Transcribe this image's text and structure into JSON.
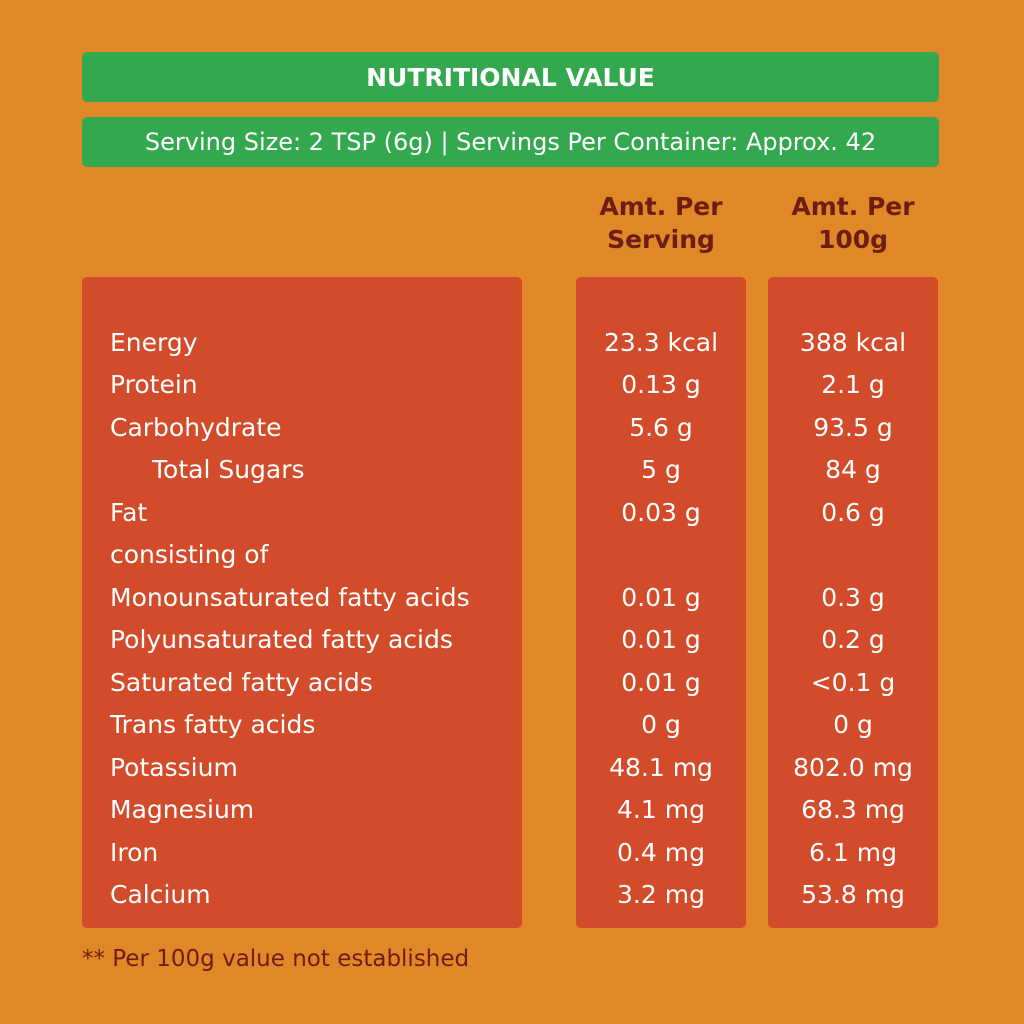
{
  "header": {
    "title": "NUTRITIONAL VALUE",
    "serving_info": "Serving Size:  2 TSP (6g) | Servings Per Container: Approx. 42"
  },
  "columns": {
    "per_serving": [
      "Amt. Per",
      "Serving"
    ],
    "per_100g": [
      "Amt. Per",
      "100g"
    ]
  },
  "rows": [
    {
      "name": "Energy",
      "serving": "23.3 kcal",
      "per100": "388 kcal"
    },
    {
      "name": "Protein",
      "serving": "0.13 g",
      "per100": "2.1 g"
    },
    {
      "name": "Carbohydrate",
      "serving": "5.6 g",
      "per100": "93.5 g"
    },
    {
      "name": "Total Sugars",
      "serving": "5 g",
      "per100": "84 g"
    },
    {
      "name": "Fat",
      "serving": "0.03 g",
      "per100": "0.6 g"
    },
    {
      "name": "consisting of",
      "serving": "",
      "per100": ""
    },
    {
      "name": "Monounsaturated fatty acids",
      "serving": "0.01 g",
      "per100": "0.3 g"
    },
    {
      "name": "Polyunsaturated fatty acids",
      "serving": "0.01 g",
      "per100": "0.2 g"
    },
    {
      "name": "Saturated fatty acids",
      "serving": "0.01 g",
      "per100": "<0.1 g"
    },
    {
      "name": "Trans fatty acids",
      "serving": "0 g",
      "per100": "0 g"
    },
    {
      "name": "Potassium",
      "serving": "48.1 mg",
      "per100": "802.0 mg"
    },
    {
      "name": "Magnesium",
      "serving": "4.1 mg",
      "per100": "68.3 mg"
    },
    {
      "name": "Iron",
      "serving": "0.4 mg",
      "per100": "6.1 mg"
    },
    {
      "name": "Calcium",
      "serving": "3.2 mg",
      "per100": "53.8 mg"
    }
  ],
  "footnote": "** Per 100g value not established",
  "colors": {
    "background": "#e08727",
    "header_green": "#33a84f",
    "panel_red": "#d24b2a",
    "dark_text": "#6e1d12"
  }
}
